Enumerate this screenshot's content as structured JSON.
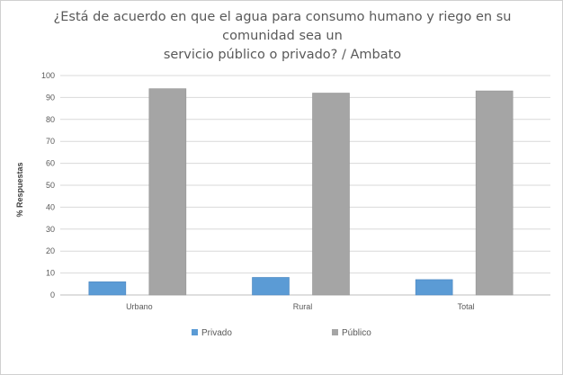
{
  "chart_data": {
    "type": "bar",
    "title": "¿Está de acuerdo en que el agua para consumo humano y riego en su comunidad sea un servicio público o privado? / Ambato",
    "title_line1": "¿Está de acuerdo en que el agua para consumo humano y riego en su comunidad sea un",
    "title_line2": "servicio público o privado? / Ambato",
    "xlabel": "",
    "ylabel": "% Respuestas",
    "categories": [
      "Urbano",
      "Rural",
      "Total"
    ],
    "series": [
      {
        "name": "Privado",
        "values": [
          6,
          8,
          7
        ],
        "color": "#5b9bd5"
      },
      {
        "name": "Público",
        "values": [
          94,
          92,
          93
        ],
        "color": "#a5a5a5"
      }
    ],
    "ylim": [
      0,
      100
    ],
    "yticks": [
      0,
      10,
      20,
      30,
      40,
      50,
      60,
      70,
      80,
      90,
      100
    ],
    "grid": true,
    "legend": "bottom"
  }
}
